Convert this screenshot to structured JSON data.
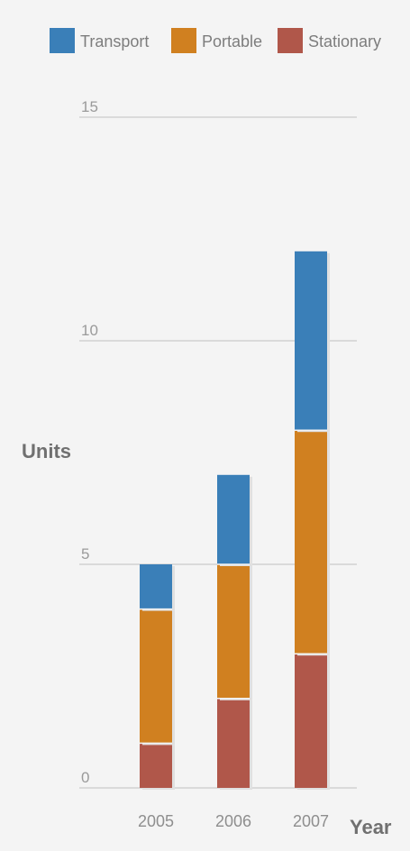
{
  "chart_data": {
    "type": "bar",
    "stacked": true,
    "title": "",
    "xlabel": "Year",
    "ylabel": "Units",
    "categories": [
      "2005",
      "2006",
      "2007"
    ],
    "ylim": [
      0,
      15
    ],
    "yticks": [
      0,
      5,
      10,
      15
    ],
    "grid": true,
    "legend_position": "top",
    "series": [
      {
        "name": "Stationary",
        "color": "#b0574a",
        "values": [
          1,
          2,
          3
        ]
      },
      {
        "name": "Portable",
        "color": "#d08020",
        "values": [
          3,
          3,
          5
        ]
      },
      {
        "name": "Transport",
        "color": "#3a7fb8",
        "values": [
          1,
          2,
          4
        ]
      }
    ],
    "legend_order": [
      "Transport",
      "Portable",
      "Stationary"
    ]
  }
}
